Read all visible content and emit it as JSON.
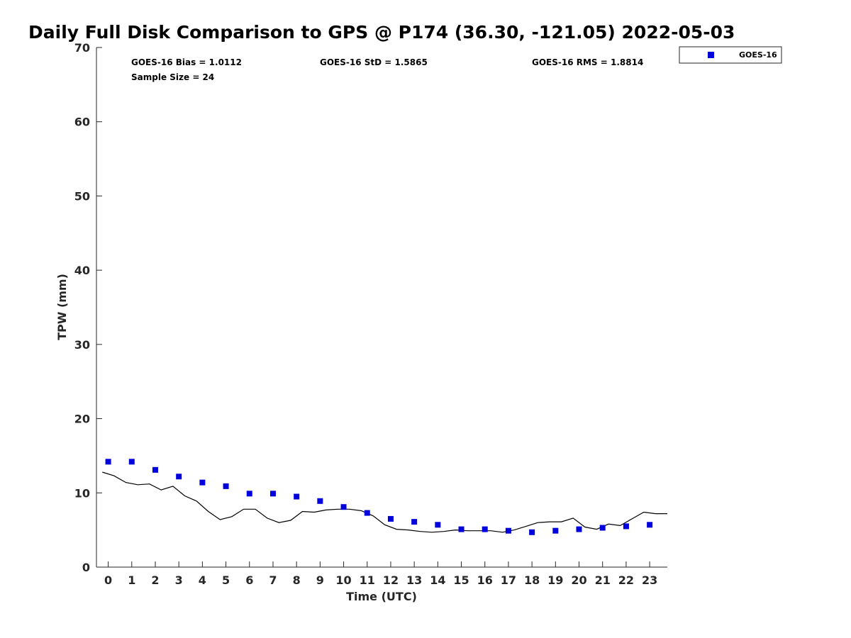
{
  "chart_data": {
    "type": "scatter",
    "title": "Daily Full Disk Comparison to GPS @ P174 (36.30, -121.05) 2022-05-03",
    "xlabel": "Time (UTC)",
    "ylabel": "TPW (mm)",
    "xlim": [
      -0.5,
      23.75
    ],
    "ylim": [
      0,
      70
    ],
    "x_ticks": [
      0,
      1,
      2,
      3,
      4,
      5,
      6,
      7,
      8,
      9,
      10,
      11,
      12,
      13,
      14,
      15,
      16,
      17,
      18,
      19,
      20,
      21,
      22,
      23
    ],
    "y_ticks": [
      0,
      10,
      20,
      30,
      40,
      50,
      60,
      70
    ],
    "grid": false,
    "legend_position": "top-right outside",
    "stats": {
      "bias": "GOES-16 Bias = 1.0112",
      "std": "GOES-16 StD = 1.5865",
      "rms": "GOES-16 RMS = 1.8814",
      "sample": "Sample Size = 24"
    },
    "series": [
      {
        "name": "GOES-16",
        "marker": "square",
        "color": "#0000dd",
        "x": [
          0,
          1,
          2,
          3,
          4,
          5,
          6,
          7,
          8,
          9,
          10,
          11,
          12,
          13,
          14,
          15,
          16,
          17,
          18,
          19,
          20,
          21,
          22,
          23
        ],
        "values": [
          14.2,
          14.2,
          13.1,
          12.2,
          11.4,
          10.9,
          9.9,
          9.9,
          9.5,
          8.9,
          8.1,
          7.3,
          6.5,
          6.1,
          5.7,
          5.1,
          5.1,
          4.9,
          4.7,
          4.9,
          5.1,
          5.3,
          5.5,
          5.7
        ]
      },
      {
        "marker": "line",
        "color": "#000000",
        "x": [
          -0.25,
          0.25,
          0.75,
          1.25,
          1.75,
          2.25,
          2.75,
          3.25,
          3.75,
          4.25,
          4.75,
          5.25,
          5.75,
          6.25,
          6.75,
          7.25,
          7.75,
          8.25,
          8.75,
          9.25,
          9.75,
          10.25,
          10.75,
          11.25,
          11.75,
          12.25,
          12.75,
          13.25,
          13.75,
          14.25,
          14.75,
          15.25,
          15.75,
          16.25,
          16.75,
          17.25,
          17.75,
          18.25,
          18.75,
          19.25,
          19.75,
          20.25,
          20.75,
          21.25,
          21.75,
          22.25,
          22.75,
          23.25,
          23.75
        ],
        "values": [
          12.8,
          12.3,
          11.4,
          11.1,
          11.2,
          10.4,
          10.9,
          9.6,
          8.9,
          7.5,
          6.4,
          6.8,
          7.8,
          7.8,
          6.6,
          6.0,
          6.3,
          7.5,
          7.4,
          7.7,
          7.8,
          7.8,
          7.6,
          6.9,
          5.7,
          5.1,
          5.0,
          4.8,
          4.7,
          4.8,
          5.0,
          4.9,
          4.9,
          4.9,
          4.7,
          5.0,
          5.5,
          6.0,
          6.1,
          6.1,
          6.6,
          5.4,
          5.1,
          5.8,
          5.6,
          6.5,
          7.4,
          7.2,
          7.2
        ]
      }
    ]
  }
}
